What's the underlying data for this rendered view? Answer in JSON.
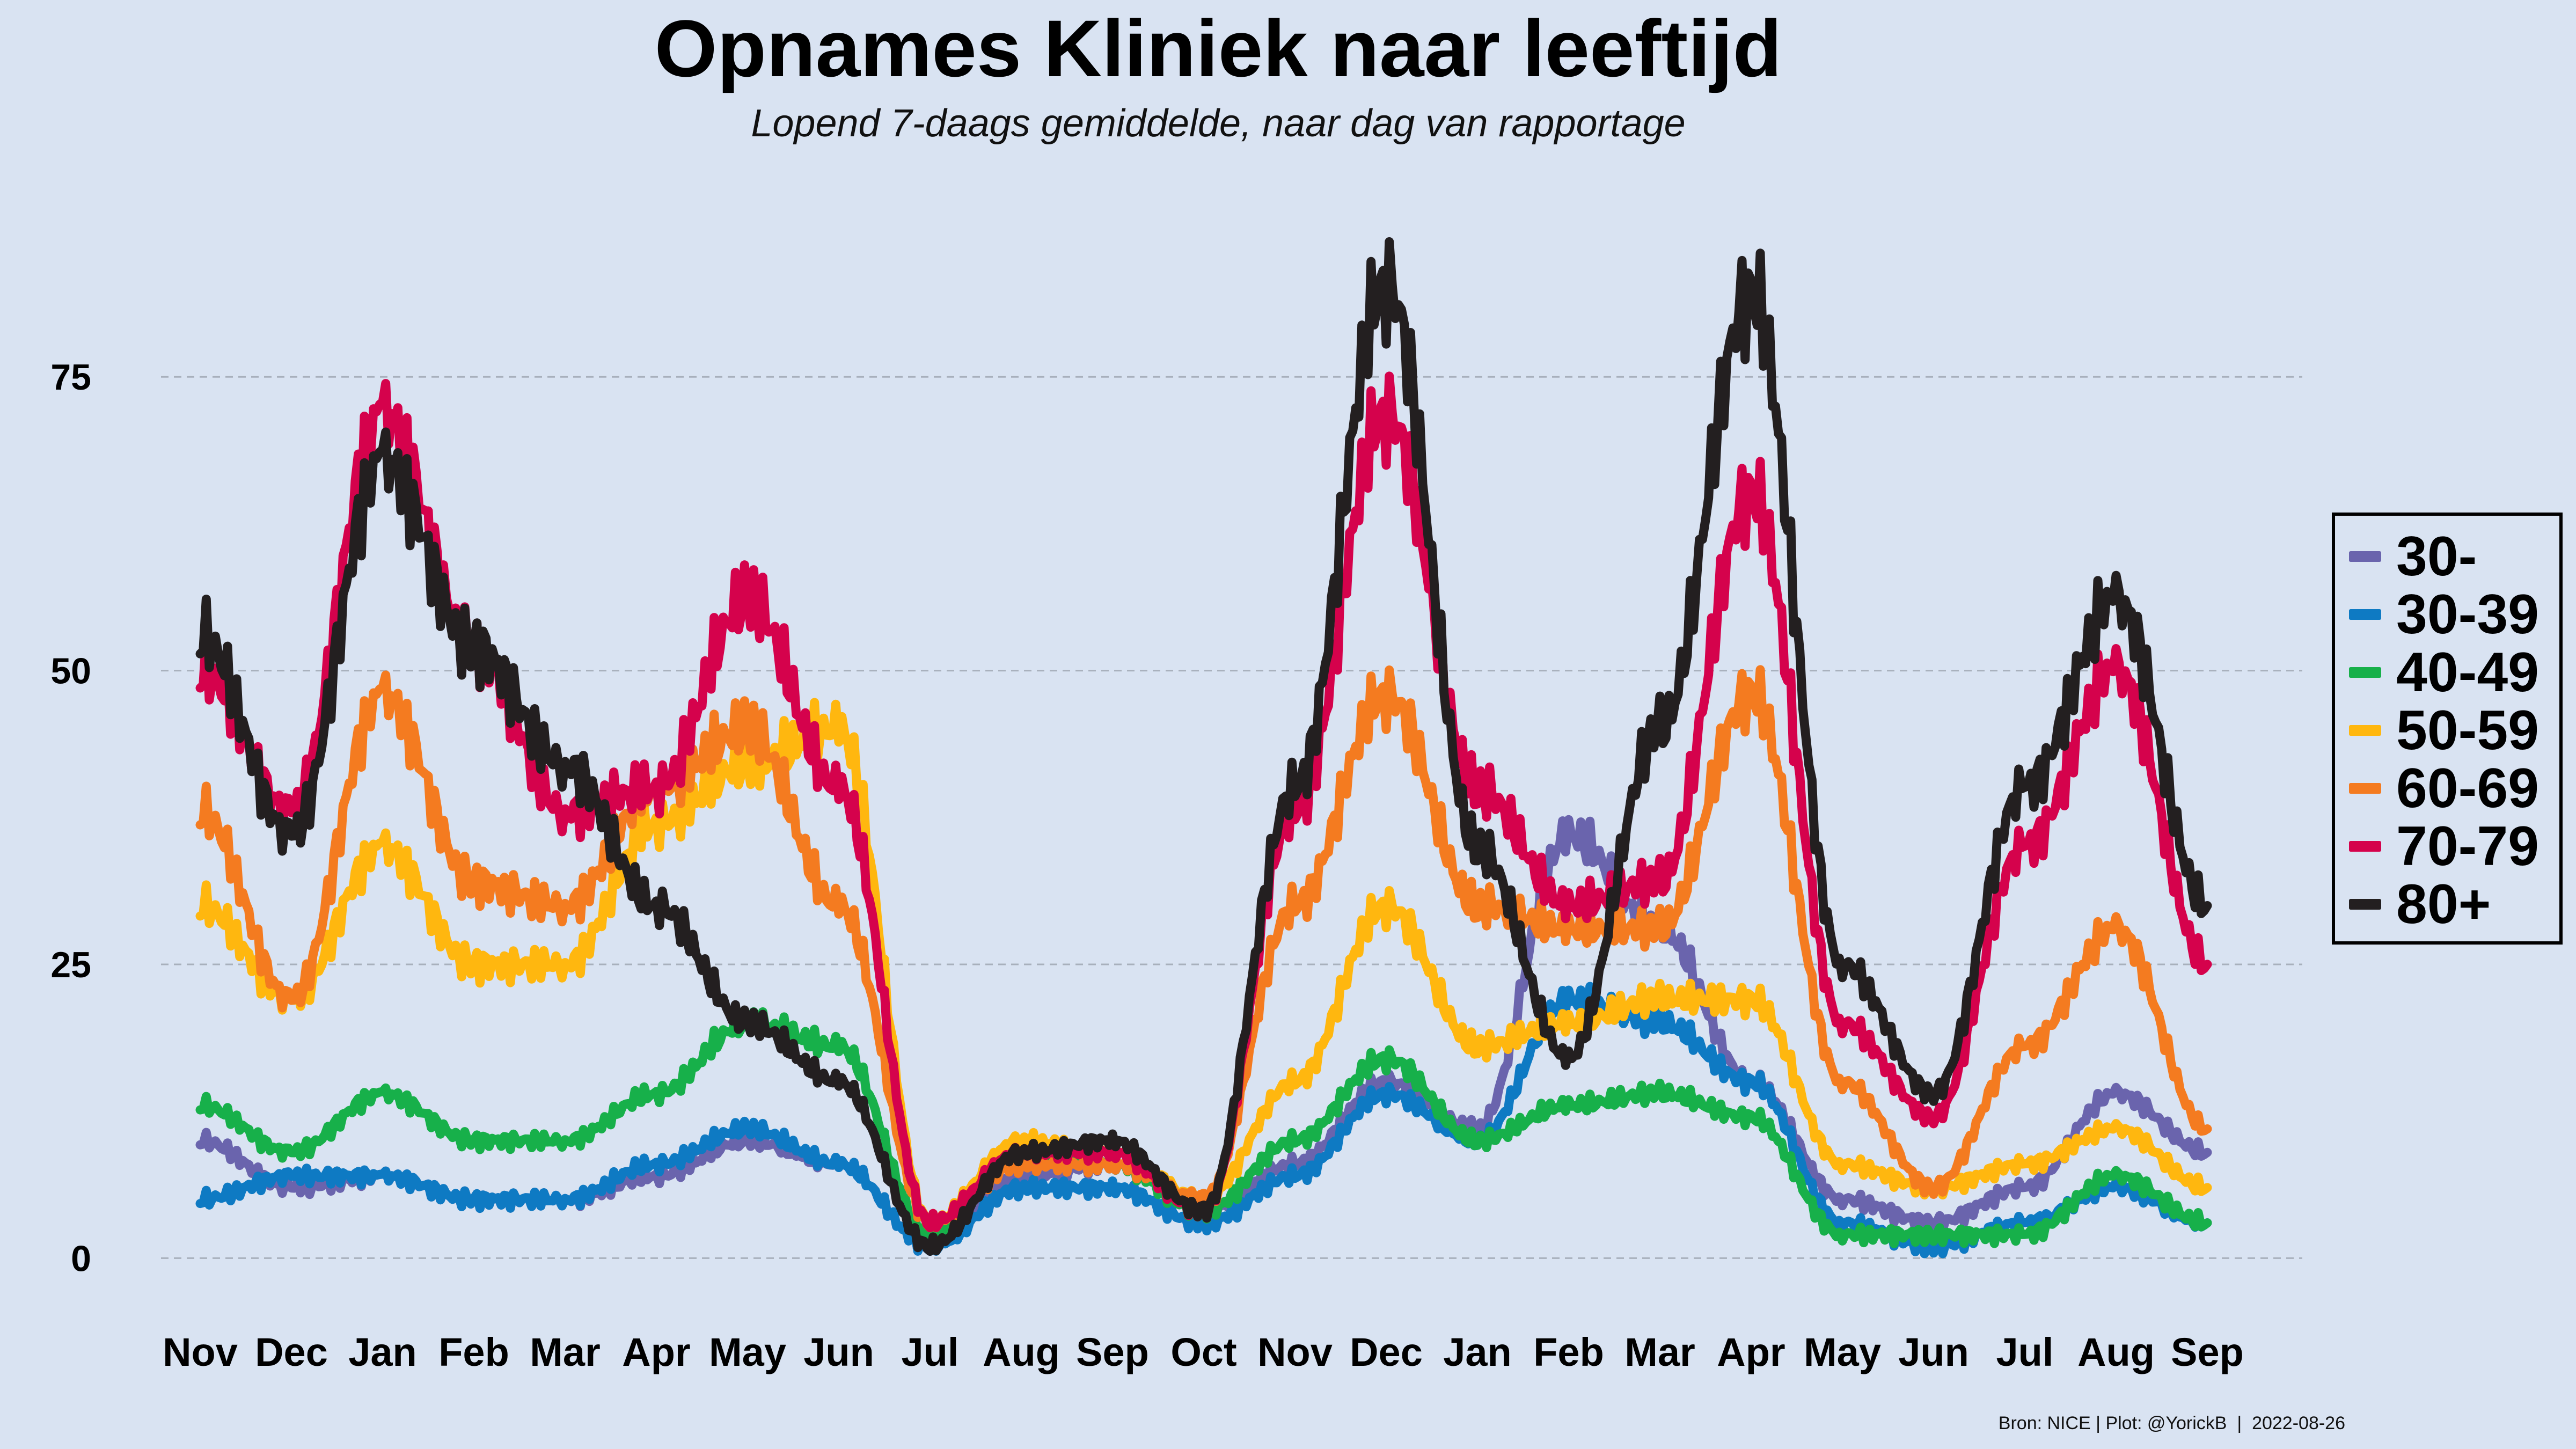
{
  "title": "Opnames Kliniek naar leeftijd",
  "subtitle": "Lopend 7-daags gemiddelde, naar dag van rapportage",
  "source": "Bron: NICE | Plot: @YorickB  |  2022-08-26",
  "chart_data": {
    "type": "line",
    "title": "Opnames Kliniek naar leeftijd",
    "subtitle": "Lopend 7-daags gemiddelde, naar dag van rapportage",
    "xlabel": "",
    "ylabel": "",
    "ylim": [
      -3,
      92
    ],
    "yticks": [
      0,
      25,
      50,
      75
    ],
    "grid": "horizontal dashed",
    "legend_position": "right",
    "categories": [
      "Nov",
      "Dec",
      "Jan",
      "Feb",
      "Mar",
      "Apr",
      "May",
      "Jun",
      "Jul",
      "Aug",
      "Sep",
      "Oct",
      "Nov",
      "Dec",
      "Jan",
      "Feb",
      "Mar",
      "Apr",
      "May",
      "Jun",
      "Jul",
      "Aug",
      "Sep"
    ],
    "series": [
      {
        "name": "30-",
        "color": "#6a64ad",
        "values": [
          10,
          6,
          7,
          5,
          5,
          7,
          10,
          8,
          1,
          7,
          8,
          4,
          8,
          15,
          11,
          36,
          28,
          15,
          5,
          3,
          6,
          14,
          9
        ]
      },
      {
        "name": "30-39",
        "color": "#0e7ac3",
        "values": [
          5,
          7,
          7,
          5,
          5,
          8,
          11,
          8,
          1,
          6,
          6,
          3,
          7,
          14,
          10,
          22,
          20,
          15,
          3,
          1,
          3,
          6,
          3
        ]
      },
      {
        "name": "40-49",
        "color": "#17b04a",
        "values": [
          13,
          9,
          14,
          10,
          10,
          14,
          20,
          18,
          2,
          9,
          8,
          4,
          10,
          17,
          10,
          13,
          14,
          12,
          2,
          2,
          2,
          7,
          3
        ]
      },
      {
        "name": "50-59",
        "color": "#ffb70f",
        "values": [
          30,
          22,
          35,
          25,
          25,
          37,
          42,
          45,
          3,
          10,
          9,
          5,
          15,
          30,
          18,
          20,
          22,
          22,
          8,
          6,
          8,
          11,
          6
        ]
      },
      {
        "name": "60-69",
        "color": "#f47b20",
        "values": [
          38,
          22,
          48,
          32,
          30,
          40,
          45,
          30,
          3,
          8,
          8,
          5,
          30,
          48,
          30,
          28,
          28,
          48,
          15,
          6,
          18,
          28,
          11
        ]
      },
      {
        "name": "70-79",
        "color": "#d5024c",
        "values": [
          50,
          38,
          72,
          52,
          38,
          40,
          56,
          40,
          3,
          9,
          9,
          4,
          38,
          72,
          40,
          30,
          32,
          65,
          20,
          12,
          35,
          50,
          25
        ]
      },
      {
        "name": "80+",
        "color": "#231f20",
        "values": [
          53,
          36,
          68,
          52,
          42,
          30,
          20,
          15,
          1,
          9,
          10,
          4,
          40,
          83,
          35,
          17,
          45,
          82,
          25,
          14,
          40,
          56,
          30
        ]
      }
    ]
  }
}
